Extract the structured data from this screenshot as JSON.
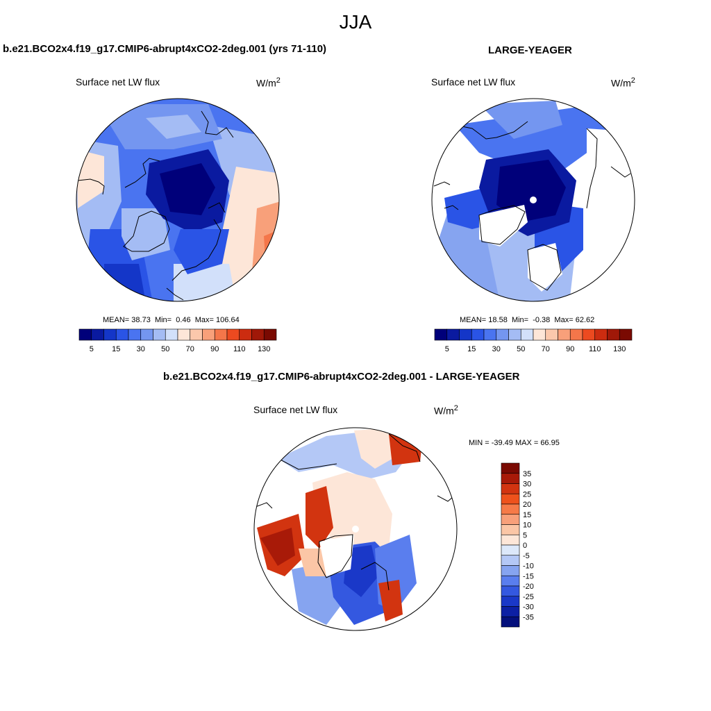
{
  "main_title": "JJA",
  "panels": [
    {
      "title": "b.e21.BCO2x4.f19_g17.CMIP6-abrupt4xCO2-2deg.001 (yrs 71-110)",
      "variable": "Surface net LW flux",
      "units": "W/m",
      "units_sup": "2",
      "stats": {
        "mean_label": "MEAN=",
        "mean": "38.73",
        "min_label": "Min=",
        "min": "0.46",
        "max_label": "Max=",
        "max": "106.64"
      }
    },
    {
      "title": "LARGE-YEAGER",
      "variable": "Surface net LW flux",
      "units": "W/m",
      "units_sup": "2",
      "stats": {
        "mean_label": "MEAN=",
        "mean": "18.58",
        "min_label": "Min=",
        "min": "-0.38",
        "max_label": "Max=",
        "max": "62.62"
      }
    },
    {
      "title": "b.e21.BCO2x4.f19_g17.CMIP6-abrupt4xCO2-2deg.001 - LARGE-YEAGER",
      "variable": "Surface net LW flux",
      "units": "W/m",
      "units_sup": "2",
      "minmax": "MIN = -39.49 MAX =  66.95"
    }
  ],
  "colorbar_top": {
    "colors": [
      "#00007a",
      "#0a1aa0",
      "#1436c8",
      "#2a54e6",
      "#4a74f0",
      "#7496f0",
      "#a4bcf4",
      "#d2e0fa",
      "#fde6d8",
      "#fbc8ac",
      "#f8a07a",
      "#f4764a",
      "#ec4a20",
      "#cc2c10",
      "#a01808",
      "#7a0a02"
    ],
    "labels": [
      "5",
      "15",
      "30",
      "50",
      "70",
      "90",
      "110",
      "130"
    ]
  },
  "colorbar_diff": {
    "colors": [
      "#7a0a02",
      "#a81a08",
      "#d23410",
      "#ee521c",
      "#f67a48",
      "#f8a07a",
      "#fbc6a6",
      "#fde6d8",
      "#dce8fa",
      "#b4c8f6",
      "#86a4f0",
      "#5a7eee",
      "#3458e0",
      "#1a38c8",
      "#0c20a4",
      "#04107c"
    ],
    "labels": [
      "35",
      "30",
      "25",
      "20",
      "15",
      "10",
      "5",
      "0",
      "-5",
      "-10",
      "-15",
      "-20",
      "-25",
      "-30",
      "-35"
    ]
  },
  "chart_data": {
    "type": "map",
    "title": "JJA",
    "variable": "Surface net LW flux",
    "units": "W/m2",
    "maps": [
      {
        "name": "b.e21.BCO2x4.f19_g17.CMIP6-abrupt4xCO2-2deg.001 (yrs 71-110)",
        "mean": 38.73,
        "min": 0.46,
        "max": 106.64,
        "levels": [
          5,
          10,
          15,
          20,
          30,
          40,
          50,
          60,
          70,
          80,
          90,
          100,
          110,
          120,
          130
        ]
      },
      {
        "name": "LARGE-YEAGER",
        "mean": 18.58,
        "min": -0.38,
        "max": 62.62,
        "levels": [
          5,
          10,
          15,
          20,
          30,
          40,
          50,
          60,
          70,
          80,
          90,
          100,
          110,
          120,
          130
        ]
      },
      {
        "name": "b.e21.BCO2x4.f19_g17.CMIP6-abrupt4xCO2-2deg.001 - LARGE-YEAGER",
        "min": -39.49,
        "max": 66.95,
        "levels": [
          -35,
          -30,
          -25,
          -20,
          -15,
          -10,
          -5,
          0,
          5,
          10,
          15,
          20,
          25,
          30,
          35
        ]
      }
    ]
  }
}
